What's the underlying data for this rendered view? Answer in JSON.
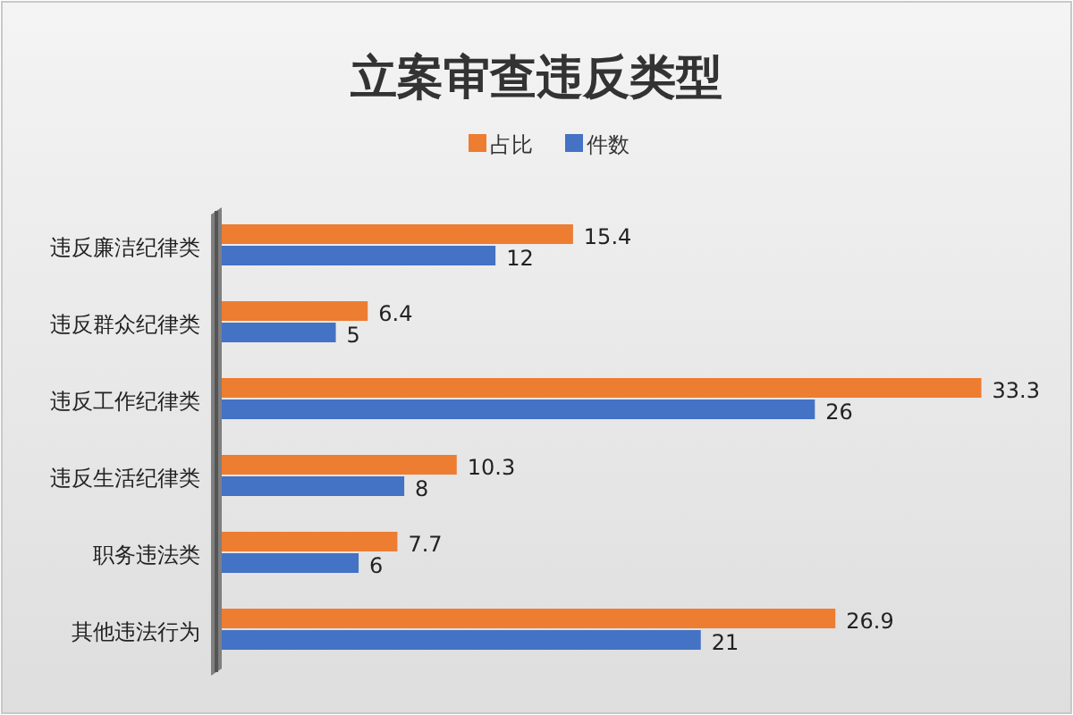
{
  "chart_data": {
    "type": "bar",
    "orientation": "horizontal",
    "title": "立案审查违反类型",
    "categories": [
      "违反廉洁纪律类",
      "违反群众纪律类",
      "违反工作纪律类",
      "违反生活纪律类",
      "职务违法类",
      "其他违法行为"
    ],
    "series": [
      {
        "name": "占比",
        "color": "#ed7d31",
        "values": [
          15.4,
          6.4,
          33.3,
          10.3,
          7.7,
          26.9
        ]
      },
      {
        "name": "件数",
        "color": "#4472c4",
        "values": [
          12,
          5,
          26,
          8,
          6,
          21
        ]
      }
    ],
    "data_labels": true,
    "legend": "top"
  }
}
